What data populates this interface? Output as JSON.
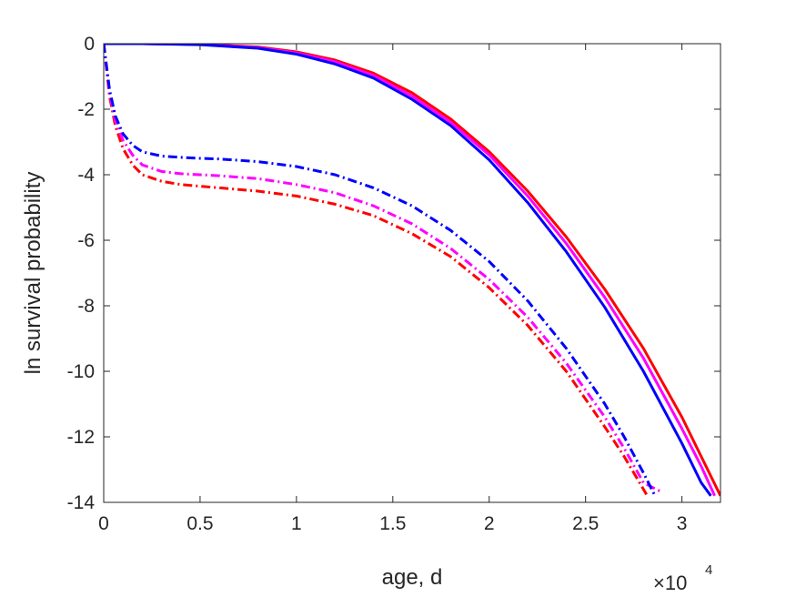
{
  "chart_data": {
    "type": "line",
    "title": "",
    "xlabel": "age, d",
    "ylabel": "ln survival probability",
    "x_multiplier": {
      "base": "×10",
      "exponent": "4"
    },
    "xlim": [
      0,
      32000
    ],
    "ylim": [
      -14,
      0
    ],
    "xticks": [
      0,
      5000,
      10000,
      15000,
      20000,
      25000,
      30000
    ],
    "xtick_labels": [
      "0",
      "0.5",
      "1",
      "1.5",
      "2",
      "2.5",
      "3"
    ],
    "yticks": [
      0,
      -2,
      -4,
      -6,
      -8,
      -10,
      -12,
      -14
    ],
    "ytick_labels": [
      "0",
      "-2",
      "-4",
      "-6",
      "-8",
      "-10",
      "-12",
      "-14"
    ],
    "grid": false,
    "legend": "none",
    "series": [
      {
        "color": "#ff0000",
        "style": "solid",
        "x": [
          0,
          2000,
          5000,
          8000,
          10000,
          12000,
          14000,
          16000,
          18000,
          20000,
          22000,
          24000,
          26000,
          28000,
          30000,
          31000,
          32000
        ],
        "y": [
          0,
          0,
          -0.02,
          -0.1,
          -0.25,
          -0.5,
          -0.9,
          -1.5,
          -2.3,
          -3.3,
          -4.5,
          -5.9,
          -7.5,
          -9.3,
          -11.4,
          -12.6,
          -13.8
        ]
      },
      {
        "color": "#ff00ff",
        "style": "solid",
        "x": [
          0,
          2000,
          5000,
          8000,
          10000,
          12000,
          14000,
          16000,
          18000,
          20000,
          22000,
          24000,
          26000,
          28000,
          30000,
          31000,
          31700
        ],
        "y": [
          0,
          0,
          -0.02,
          -0.12,
          -0.28,
          -0.55,
          -0.97,
          -1.6,
          -2.4,
          -3.4,
          -4.65,
          -6.1,
          -7.75,
          -9.6,
          -11.75,
          -12.9,
          -13.8
        ]
      },
      {
        "color": "#0000ff",
        "style": "solid",
        "x": [
          0,
          2000,
          5000,
          8000,
          10000,
          12000,
          14000,
          16000,
          18000,
          20000,
          22000,
          24000,
          26000,
          28000,
          30000,
          31000,
          31500
        ],
        "y": [
          0,
          0,
          -0.03,
          -0.14,
          -0.32,
          -0.62,
          -1.05,
          -1.7,
          -2.5,
          -3.55,
          -4.85,
          -6.35,
          -8.05,
          -10.0,
          -12.2,
          -13.4,
          -13.8
        ]
      },
      {
        "color": "#ff0000",
        "style": "dashdot",
        "x": [
          0,
          300,
          600,
          1000,
          1500,
          2000,
          3000,
          4000,
          5000,
          6000,
          8000,
          10000,
          12000,
          14000,
          16000,
          18000,
          20000,
          22000,
          24000,
          26000,
          27000,
          28000,
          28200
        ],
        "y": [
          0,
          -1.6,
          -2.5,
          -3.2,
          -3.7,
          -4.0,
          -4.2,
          -4.3,
          -4.35,
          -4.4,
          -4.5,
          -4.65,
          -4.9,
          -5.25,
          -5.8,
          -6.5,
          -7.45,
          -8.6,
          -10.0,
          -11.7,
          -12.6,
          -13.6,
          -13.8
        ]
      },
      {
        "color": "#ff00ff",
        "style": "dashdot",
        "x": [
          0,
          300,
          600,
          1000,
          1500,
          2000,
          3000,
          4000,
          5000,
          6000,
          8000,
          10000,
          12000,
          14000,
          16000,
          18000,
          20000,
          22000,
          24000,
          26000,
          27000,
          28000,
          29000
        ],
        "y": [
          0,
          -1.5,
          -2.35,
          -2.95,
          -3.4,
          -3.7,
          -3.9,
          -3.97,
          -4.0,
          -4.03,
          -4.12,
          -4.3,
          -4.55,
          -4.95,
          -5.5,
          -6.25,
          -7.2,
          -8.35,
          -9.75,
          -11.4,
          -12.35,
          -13.4,
          -13.7
        ]
      },
      {
        "color": "#0000ff",
        "style": "dashdot",
        "x": [
          0,
          300,
          600,
          1000,
          1500,
          2000,
          3000,
          4000,
          5000,
          6000,
          8000,
          10000,
          12000,
          14000,
          16000,
          18000,
          20000,
          22000,
          24000,
          26000,
          27000,
          28000,
          28600
        ],
        "y": [
          0,
          -1.4,
          -2.2,
          -2.75,
          -3.1,
          -3.3,
          -3.43,
          -3.47,
          -3.5,
          -3.52,
          -3.6,
          -3.75,
          -4.0,
          -4.4,
          -4.95,
          -5.7,
          -6.65,
          -7.85,
          -9.3,
          -11.0,
          -12.0,
          -13.1,
          -13.8
        ]
      }
    ]
  }
}
